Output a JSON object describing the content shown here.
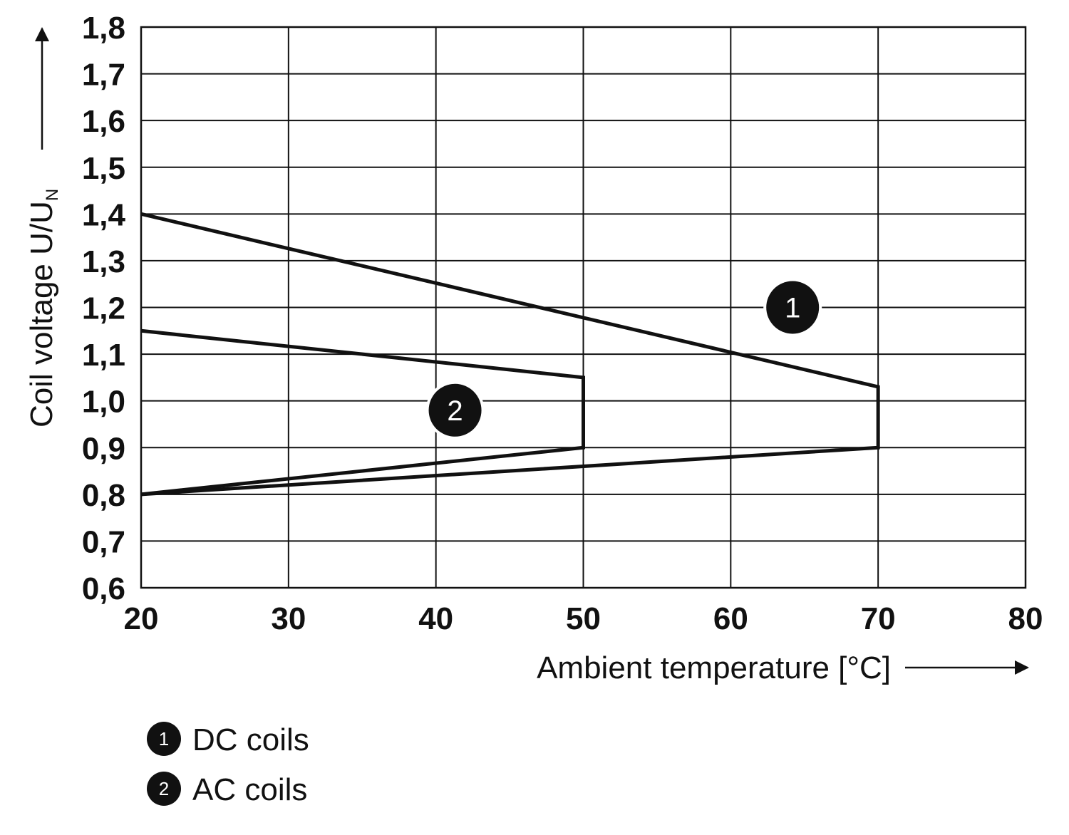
{
  "chart_data": {
    "type": "line",
    "title": "",
    "xlabel": "Ambient temperature [°C]",
    "ylabel_main": "Coil voltage U/U",
    "ylabel_subscript": "N",
    "xlim": [
      20,
      80
    ],
    "ylim": [
      0.6,
      1.8
    ],
    "grid": true,
    "x_ticks": [
      20,
      30,
      40,
      50,
      60,
      70,
      80
    ],
    "x_tick_labels": [
      "20",
      "30",
      "40",
      "50",
      "60",
      "70",
      "80"
    ],
    "y_ticks": [
      0.6,
      0.7,
      0.8,
      0.9,
      1.0,
      1.1,
      1.2,
      1.3,
      1.4,
      1.5,
      1.6,
      1.7,
      1.8
    ],
    "y_tick_labels": [
      "0,6",
      "0,7",
      "0,8",
      "0,9",
      "1,0",
      "1,1",
      "1,2",
      "1,3",
      "1,4",
      "1,5",
      "1,6",
      "1,7",
      "1,8"
    ],
    "series": [
      {
        "id": "1",
        "name": "DC coils",
        "points": [
          [
            20,
            1.4
          ],
          [
            70,
            1.03
          ],
          [
            70,
            0.9
          ],
          [
            20,
            0.8
          ]
        ],
        "marker_at": [
          64.2,
          1.2
        ]
      },
      {
        "id": "2",
        "name": "AC coils",
        "points": [
          [
            20,
            1.15
          ],
          [
            50,
            1.05
          ],
          [
            50,
            0.9
          ],
          [
            20,
            0.8
          ]
        ],
        "marker_at": [
          41.3,
          0.98
        ]
      }
    ],
    "legend": [
      {
        "num": "1",
        "label": "DC coils"
      },
      {
        "num": "2",
        "label": "AC coils"
      }
    ],
    "legend_position": "bottom-left"
  }
}
